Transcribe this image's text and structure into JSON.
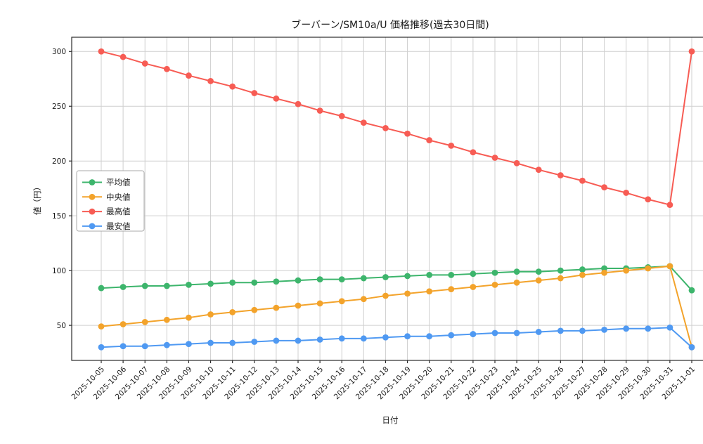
{
  "chart_data": {
    "type": "line",
    "title": "ブーバーン/SM10a/U 価格推移(過去30日間)",
    "xlabel": "日付",
    "ylabel": "値（円）",
    "grid": true,
    "legend_position": "left-middle",
    "marker": "circle",
    "ylim": [
      18,
      313
    ],
    "yticks": [
      50,
      100,
      150,
      200,
      250,
      300
    ],
    "categories": [
      "2025-10-05",
      "2025-10-06",
      "2025-10-07",
      "2025-10-08",
      "2025-10-09",
      "2025-10-10",
      "2025-10-11",
      "2025-10-12",
      "2025-10-13",
      "2025-10-14",
      "2025-10-15",
      "2025-10-16",
      "2025-10-17",
      "2025-10-18",
      "2025-10-19",
      "2025-10-20",
      "2025-10-21",
      "2025-10-22",
      "2025-10-23",
      "2025-10-24",
      "2025-10-25",
      "2025-10-26",
      "2025-10-27",
      "2025-10-28",
      "2025-10-29",
      "2025-10-30",
      "2025-10-31",
      "2025-11-01"
    ],
    "series": [
      {
        "name": "平均値",
        "color": "#3db56c",
        "values": [
          84,
          85,
          86,
          86,
          87,
          88,
          89,
          89,
          90,
          91,
          92,
          92,
          93,
          94,
          95,
          96,
          96,
          97,
          98,
          99,
          99,
          100,
          101,
          102,
          102,
          103,
          104,
          82
        ]
      },
      {
        "name": "中央値",
        "color": "#f3a32b",
        "values": [
          49,
          51,
          53,
          55,
          57,
          60,
          62,
          64,
          66,
          68,
          70,
          72,
          74,
          77,
          79,
          81,
          83,
          85,
          87,
          89,
          91,
          93,
          96,
          98,
          100,
          102,
          104,
          30
        ]
      },
      {
        "name": "最高値",
        "color": "#f75c54",
        "values": [
          300,
          295,
          289,
          284,
          278,
          273,
          268,
          262,
          257,
          252,
          246,
          241,
          235,
          230,
          225,
          219,
          214,
          208,
          203,
          198,
          192,
          187,
          182,
          176,
          171,
          165,
          160,
          300
        ]
      },
      {
        "name": "最安値",
        "color": "#4f99f2",
        "values": [
          30,
          31,
          31,
          32,
          33,
          34,
          34,
          35,
          36,
          36,
          37,
          38,
          38,
          39,
          40,
          40,
          41,
          42,
          43,
          43,
          44,
          45,
          45,
          46,
          47,
          47,
          48,
          30
        ]
      }
    ]
  },
  "style": {
    "grid_color": "#cfcfcf",
    "border_color": "#2b2b2b",
    "text_color": "#1a1a1a",
    "legend_border_color": "#a9a9a9"
  }
}
